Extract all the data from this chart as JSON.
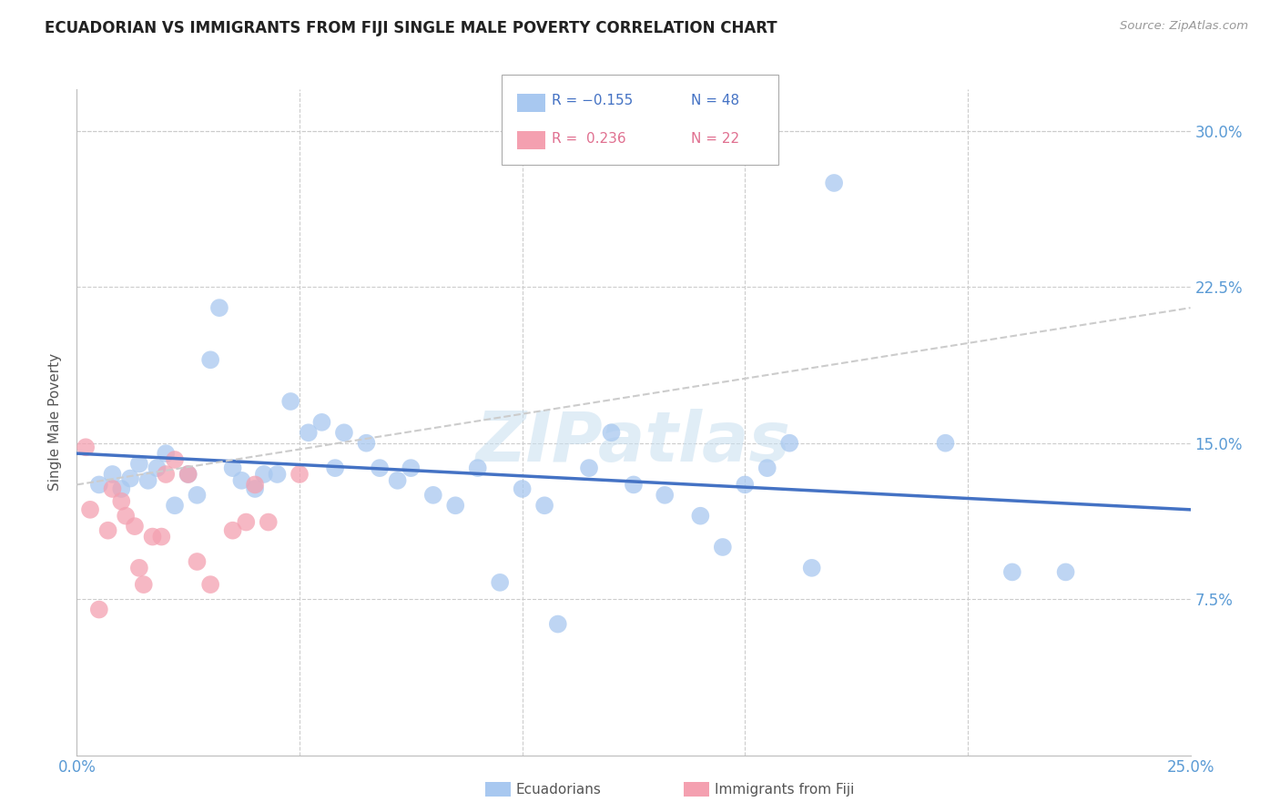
{
  "title": "ECUADORIAN VS IMMIGRANTS FROM FIJI SINGLE MALE POVERTY CORRELATION CHART",
  "source": "Source: ZipAtlas.com",
  "ylabel": "Single Male Poverty",
  "xlim": [
    0.0,
    0.25
  ],
  "ylim": [
    0.0,
    0.32
  ],
  "xticks": [
    0.0,
    0.05,
    0.1,
    0.15,
    0.2,
    0.25
  ],
  "xticklabels": [
    "0.0%",
    "",
    "",
    "",
    "",
    "25.0%"
  ],
  "yticks": [
    0.0,
    0.075,
    0.15,
    0.225,
    0.3
  ],
  "yticklabels": [
    "",
    "7.5%",
    "15.0%",
    "22.5%",
    "30.0%"
  ],
  "blue_color": "#a8c8f0",
  "pink_color": "#f4a0b0",
  "blue_line_color": "#4472c4",
  "pink_line_color": "#cccccc",
  "tick_color": "#5b9bd5",
  "grid_color": "#cccccc",
  "watermark": "ZIPatlas",
  "legend_r_blue": "R = −0.155",
  "legend_n_blue": "N = 48",
  "legend_r_pink": "R =  0.236",
  "legend_n_pink": "N = 22",
  "blue_scatter_x": [
    0.005,
    0.008,
    0.01,
    0.012,
    0.014,
    0.016,
    0.018,
    0.02,
    0.022,
    0.025,
    0.027,
    0.03,
    0.032,
    0.035,
    0.037,
    0.04,
    0.042,
    0.045,
    0.048,
    0.052,
    0.055,
    0.058,
    0.06,
    0.065,
    0.068,
    0.072,
    0.075,
    0.08,
    0.085,
    0.09,
    0.095,
    0.1,
    0.105,
    0.108,
    0.115,
    0.12,
    0.125,
    0.132,
    0.14,
    0.145,
    0.15,
    0.155,
    0.16,
    0.165,
    0.17,
    0.195,
    0.21,
    0.222
  ],
  "blue_scatter_y": [
    0.13,
    0.135,
    0.128,
    0.133,
    0.14,
    0.132,
    0.138,
    0.145,
    0.12,
    0.135,
    0.125,
    0.19,
    0.215,
    0.138,
    0.132,
    0.128,
    0.135,
    0.135,
    0.17,
    0.155,
    0.16,
    0.138,
    0.155,
    0.15,
    0.138,
    0.132,
    0.138,
    0.125,
    0.12,
    0.138,
    0.083,
    0.128,
    0.12,
    0.063,
    0.138,
    0.155,
    0.13,
    0.125,
    0.115,
    0.1,
    0.13,
    0.138,
    0.15,
    0.09,
    0.275,
    0.15,
    0.088,
    0.088
  ],
  "pink_scatter_x": [
    0.002,
    0.003,
    0.005,
    0.007,
    0.008,
    0.01,
    0.011,
    0.013,
    0.014,
    0.015,
    0.017,
    0.019,
    0.02,
    0.022,
    0.025,
    0.027,
    0.03,
    0.035,
    0.038,
    0.04,
    0.043,
    0.05
  ],
  "pink_scatter_y": [
    0.148,
    0.118,
    0.07,
    0.108,
    0.128,
    0.122,
    0.115,
    0.11,
    0.09,
    0.082,
    0.105,
    0.105,
    0.135,
    0.142,
    0.135,
    0.093,
    0.082,
    0.108,
    0.112,
    0.13,
    0.112,
    0.135
  ],
  "blue_trend_x": [
    0.0,
    0.25
  ],
  "blue_trend_y": [
    0.145,
    0.118
  ],
  "pink_trend_x": [
    0.0,
    0.25
  ],
  "pink_trend_y": [
    0.13,
    0.215
  ]
}
